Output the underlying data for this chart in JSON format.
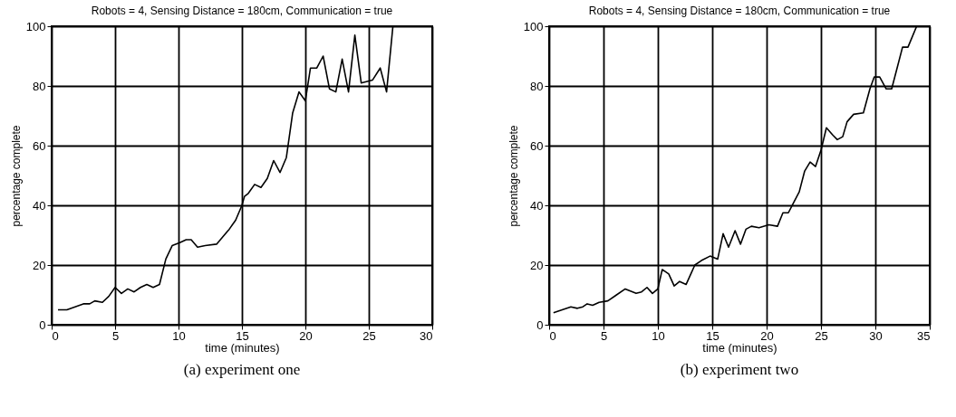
{
  "chart_data": [
    {
      "type": "line",
      "title": "Robots = 4, Sensing Distance = 180cm, Communication = true",
      "xlabel": "time (minutes)",
      "ylabel": "percentage complete",
      "annotations": [
        "(a) experiment one"
      ],
      "grid": true,
      "xlim": [
        0,
        30
      ],
      "xticks": [
        0,
        5,
        10,
        15,
        20,
        25,
        30
      ],
      "ylim": [
        0,
        100
      ],
      "yticks": [
        0,
        20,
        40,
        60,
        80,
        100
      ],
      "series": [
        {
          "color": "#000000",
          "x": [
            0.5,
            1.2,
            2.5,
            3.0,
            3.4,
            4.0,
            4.5,
            5.0,
            5.5,
            6.0,
            6.5,
            7.0,
            7.5,
            8.0,
            8.5,
            9.0,
            9.5,
            10.1,
            10.6,
            11.0,
            11.5,
            12.1,
            13.0,
            13.6,
            14.0,
            14.5,
            15.0,
            15.2,
            15.5,
            16.0,
            16.5,
            17.0,
            17.5,
            18.0,
            18.5,
            19.0,
            19.5,
            20.0,
            20.4,
            20.9,
            21.4,
            21.9,
            22.4,
            22.9,
            23.4,
            23.9,
            24.4,
            25.3,
            25.9,
            26.4,
            26.9
          ],
          "values": [
            5,
            5,
            7,
            7,
            8,
            7.5,
            9.5,
            12.5,
            10.5,
            12,
            11,
            12.5,
            13.5,
            12.5,
            13.5,
            22,
            26.5,
            27.5,
            28.5,
            28.5,
            26,
            26.5,
            27,
            30,
            32,
            35,
            40,
            43,
            44,
            47,
            46,
            49,
            55,
            51,
            56,
            71,
            78,
            75,
            86,
            86,
            90,
            79,
            78,
            89,
            78,
            97,
            81,
            82,
            86,
            78,
            100
          ]
        }
      ]
    },
    {
      "type": "line",
      "title": "Robots = 4, Sensing Distance = 180cm, Communication = true",
      "xlabel": "time (minutes)",
      "ylabel": "percentage complete",
      "annotations": [
        "(b) experiment two"
      ],
      "grid": true,
      "xlim": [
        0,
        35
      ],
      "xticks": [
        0,
        5,
        10,
        15,
        20,
        25,
        30,
        35
      ],
      "ylim": [
        0,
        100
      ],
      "yticks": [
        0,
        20,
        40,
        60,
        80,
        100
      ],
      "series": [
        {
          "color": "#000000",
          "x": [
            0.4,
            1.2,
            2.0,
            2.6,
            3.1,
            3.5,
            4.0,
            4.6,
            5.4,
            6.2,
            7.0,
            8.0,
            8.5,
            9.0,
            9.5,
            10.0,
            10.4,
            11.0,
            11.5,
            12.0,
            12.6,
            13.4,
            14.0,
            14.8,
            15.5,
            16.0,
            16.5,
            17.1,
            17.6,
            18.1,
            18.6,
            19.3,
            20.2,
            21.0,
            21.5,
            22.0,
            22.5,
            23.0,
            23.5,
            24.0,
            24.5,
            25.0,
            25.5,
            26.1,
            26.5,
            27.0,
            27.4,
            28.0,
            28.9,
            29.5,
            29.9,
            30.4,
            31.0,
            31.5,
            32.0,
            32.5,
            33.0,
            33.8
          ],
          "values": [
            4,
            5,
            6,
            5.5,
            6,
            7,
            6.5,
            7.5,
            8,
            10,
            12,
            10.5,
            11,
            12.5,
            10.5,
            12,
            18.5,
            17,
            13,
            14.5,
            13.5,
            20,
            21.5,
            23,
            22,
            30.5,
            26,
            31.5,
            27,
            32,
            33,
            32.5,
            33.5,
            33,
            37.5,
            37.5,
            41,
            44.5,
            51.5,
            54.5,
            53,
            58.5,
            66,
            63.5,
            62,
            63,
            68,
            70.5,
            71,
            79,
            83,
            83,
            79,
            79,
            86,
            93,
            93,
            100
          ]
        }
      ]
    }
  ]
}
